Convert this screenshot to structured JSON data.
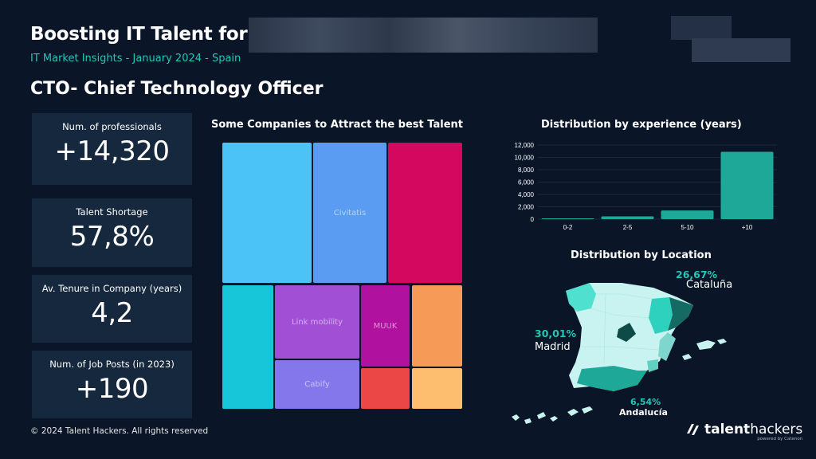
{
  "header": {
    "title": "Boosting IT Talent for",
    "subtitle": "IT Market Insights - January 2024 - Spain",
    "role": "CTO- Chief Technology Officer"
  },
  "kpis": [
    {
      "label": "Num. of professionals",
      "value": "+14,320"
    },
    {
      "label": "Talent Shortage",
      "value": "57,8%"
    },
    {
      "label": "Av. Tenure in Company (years)",
      "value": "4,2"
    },
    {
      "label": "Num. of Job Posts (in 2023)",
      "value": "+190"
    }
  ],
  "treemap": {
    "title": "Some Companies to Attract the best Talent",
    "tiles": [
      {
        "label": "",
        "color": "#4cc3f7"
      },
      {
        "label": "Civitatis",
        "color": "#5a9cf2"
      },
      {
        "label": "",
        "color": "#d4085f"
      },
      {
        "label": "",
        "color": "#18c6d9"
      },
      {
        "label": "Link mobility",
        "color": "#a150d6"
      },
      {
        "label": "MUUK",
        "color": "#b0119e"
      },
      {
        "label": "",
        "color": "#f59a57"
      },
      {
        "label": "Cabify",
        "color": "#8477ec"
      },
      {
        "label": "",
        "color": "#ec4747"
      },
      {
        "label": "",
        "color": "#fdbf6f"
      }
    ]
  },
  "chart_data": {
    "type": "bar",
    "title": "Distribution by experience (years)",
    "categories": [
      "0-2",
      "2-5",
      "5-10",
      "+10"
    ],
    "values": [
      130,
      450,
      1400,
      10900
    ],
    "ylim": [
      0,
      12000
    ],
    "yticks": [
      "0",
      "2,000",
      "4,000",
      "6,000",
      "8,000",
      "10,000",
      "12,000"
    ],
    "grid": true,
    "color": "#1ea898"
  },
  "location": {
    "title": "Distribution by Location",
    "regions": [
      {
        "pct": "26,67%",
        "name": "Cataluña"
      },
      {
        "pct": "30,01%",
        "name": "Madrid"
      },
      {
        "pct": "6,54%",
        "name": "Andalucía"
      }
    ]
  },
  "footer": {
    "copyright": "© 2024  Talent Hackers. All rights reserved"
  },
  "brand": {
    "name_bold": "talent",
    "name_light": "hackers",
    "tagline": "powered by Catenon"
  }
}
